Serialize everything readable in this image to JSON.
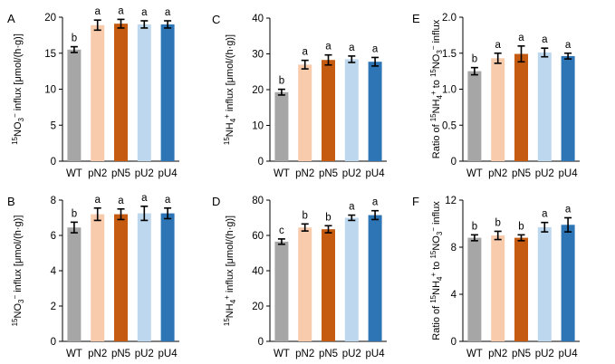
{
  "chart_data": [
    {
      "panel": "A",
      "type": "bar",
      "ylabel": "15NO3− influx [μmol/(h·g)]",
      "ylim": [
        0,
        20
      ],
      "yticks": [
        0,
        5,
        10,
        15,
        20
      ],
      "categories": [
        "WT",
        "pN2",
        "pN5",
        "pU2",
        "pU4"
      ],
      "values": [
        15.5,
        18.9,
        19.1,
        19.0,
        19.0
      ],
      "errors": [
        0.4,
        0.7,
        0.6,
        0.5,
        0.5
      ],
      "letters": [
        "b",
        "a",
        "a",
        "a",
        "a"
      ]
    },
    {
      "panel": "C",
      "type": "bar",
      "ylabel": "15NH4+ influx [μmol/(h·g)]",
      "ylim": [
        0,
        40
      ],
      "yticks": [
        0,
        10,
        20,
        30,
        40
      ],
      "categories": [
        "WT",
        "pN2",
        "pN5",
        "pU2",
        "pU4"
      ],
      "values": [
        19.3,
        27.0,
        28.3,
        28.5,
        27.8
      ],
      "errors": [
        0.8,
        1.2,
        1.4,
        0.9,
        1.2
      ],
      "letters": [
        "b",
        "a",
        "a",
        "a",
        "a"
      ]
    },
    {
      "panel": "E",
      "type": "bar",
      "ylabel": "Ratio of 15NH4+ to 15NO3− influx",
      "ylim": [
        0,
        2
      ],
      "yticks": [
        0,
        0.5,
        1,
        1.5,
        2
      ],
      "ytick_labels": [
        "0",
        "0.5",
        "1.0",
        "1.5",
        "2.0"
      ],
      "categories": [
        "WT",
        "pN2",
        "pN5",
        "pU2",
        "pU4"
      ],
      "values": [
        1.25,
        1.43,
        1.49,
        1.51,
        1.46
      ],
      "errors": [
        0.05,
        0.07,
        0.11,
        0.06,
        0.04
      ],
      "letters": [
        "b",
        "a",
        "a",
        "a",
        "a"
      ]
    },
    {
      "panel": "B",
      "type": "bar",
      "ylabel": "15NO3− influx [μmol/(h·g)]",
      "ylim": [
        0,
        8
      ],
      "yticks": [
        0,
        2,
        4,
        6,
        8
      ],
      "categories": [
        "WT",
        "pN2",
        "pN5",
        "pU2",
        "pU4"
      ],
      "values": [
        6.45,
        7.2,
        7.2,
        7.25,
        7.25
      ],
      "errors": [
        0.3,
        0.35,
        0.3,
        0.4,
        0.3
      ],
      "letters": [
        "b",
        "a",
        "a",
        "a",
        "a"
      ]
    },
    {
      "panel": "D",
      "type": "bar",
      "ylabel": "15NH4+ influx [μmol/(h·g)]",
      "ylim": [
        0,
        80
      ],
      "yticks": [
        0,
        20,
        40,
        60,
        80
      ],
      "categories": [
        "WT",
        "pN2",
        "pN5",
        "pU2",
        "pU4"
      ],
      "values": [
        56.5,
        64.5,
        63.5,
        70.0,
        71.5
      ],
      "errors": [
        1.5,
        2.0,
        2.0,
        1.5,
        2.5
      ],
      "letters": [
        "c",
        "b",
        "b",
        "a",
        "a"
      ]
    },
    {
      "panel": "F",
      "type": "bar",
      "ylabel": "Ratio of 15NH4+ to 15NO3− influx",
      "ylim": [
        0,
        12
      ],
      "yticks": [
        0,
        4,
        8,
        12
      ],
      "categories": [
        "WT",
        "pN2",
        "pN5",
        "pU2",
        "pU4"
      ],
      "values": [
        8.8,
        9.0,
        8.8,
        9.7,
        9.9
      ],
      "errors": [
        0.25,
        0.35,
        0.25,
        0.4,
        0.6
      ],
      "letters": [
        "b",
        "b",
        "b",
        "a",
        "a"
      ]
    }
  ],
  "colors": {
    "WT": "#a6a6a6",
    "pN2": "#f8cbad",
    "pN5": "#c55a11",
    "pU2": "#bdd7ee",
    "pU4": "#2e75b6"
  }
}
